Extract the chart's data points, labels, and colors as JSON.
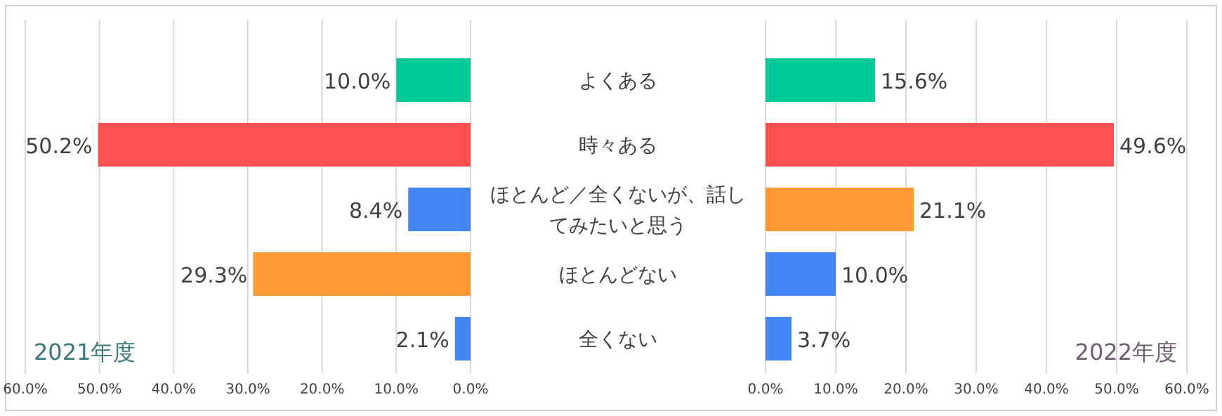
{
  "chart_data": [
    {
      "type": "bar",
      "orientation": "horizontal",
      "title": "2021年度",
      "categories": [
        "よくある",
        "時々ある",
        "ほとんど／全くないが、話してみたいと思う",
        "ほとんどない",
        "全くない"
      ],
      "values": [
        10.0,
        50.2,
        8.4,
        29.3,
        2.1
      ],
      "colors": [
        "#00c896",
        "#ff4f4f",
        "#4285f4",
        "#ff9933",
        "#4285f4"
      ],
      "value_labels": [
        "10.0%",
        "50.2%",
        "8.4%",
        "29.3%",
        "2.1%"
      ],
      "xlim": [
        60,
        0
      ],
      "xticks": [
        {
          "value": 60,
          "label": "60.0%"
        },
        {
          "value": 50,
          "label": "50.0%"
        },
        {
          "value": 40,
          "label": "40.0%"
        },
        {
          "value": 30,
          "label": "30.0%"
        },
        {
          "value": 20,
          "label": "20.0%"
        },
        {
          "value": 10,
          "label": "10.0%"
        },
        {
          "value": 0,
          "label": "0.0%"
        }
      ],
      "grid": "x",
      "tick_labels": "x"
    },
    {
      "type": "bar",
      "orientation": "horizontal",
      "title": "2022年度",
      "categories": [
        "よくある",
        "時々ある",
        "ほとんど／全くないが、話してみたいと思う",
        "ほとんどない",
        "全くない"
      ],
      "values": [
        15.6,
        49.6,
        21.1,
        10.0,
        3.7
      ],
      "colors": [
        "#00c896",
        "#ff4f4f",
        "#ff9933",
        "#4285f4",
        "#4285f4"
      ],
      "value_labels": [
        "15.6%",
        "49.6%",
        "21.1%",
        "10.0%",
        "3.7%"
      ],
      "xlim": [
        0,
        60
      ],
      "xticks": [
        {
          "value": 0,
          "label": "0.0%"
        },
        {
          "value": 10,
          "label": "10.0%"
        },
        {
          "value": 20,
          "label": "20.0%"
        },
        {
          "value": 30,
          "label": "30.0%"
        },
        {
          "value": 40,
          "label": "40.0%"
        },
        {
          "value": 50,
          "label": "50.0%"
        },
        {
          "value": 60,
          "label": "60.0%"
        }
      ],
      "grid": "x"
    }
  ]
}
